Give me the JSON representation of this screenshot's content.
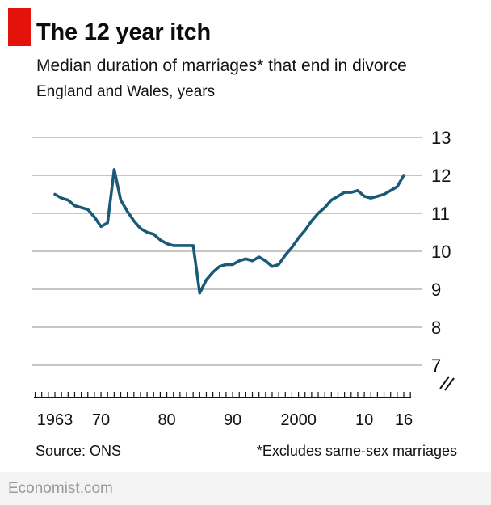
{
  "brand": {
    "accent_color": "#E3120B",
    "site_label": "Economist.com"
  },
  "header": {
    "title": "The 12 year itch",
    "subtitle": "Median duration of marriages* that end in divorce",
    "context": "England and Wales, years"
  },
  "chart_data": {
    "type": "line",
    "title": "The 12 year itch",
    "subtitle": "Median duration of marriages* that end in divorce",
    "region": "England and Wales",
    "unit": "years",
    "grid": "horizontal",
    "y_axis_side": "right",
    "axis_break": true,
    "ylim": [
      7,
      13
    ],
    "yticks": [
      7,
      8,
      9,
      10,
      11,
      12,
      13
    ],
    "xticks": [
      {
        "year": 1963,
        "label": "1963"
      },
      {
        "year": 1970,
        "label": "70"
      },
      {
        "year": 1980,
        "label": "80"
      },
      {
        "year": 1990,
        "label": "90"
      },
      {
        "year": 2000,
        "label": "2000"
      },
      {
        "year": 2010,
        "label": "10"
      },
      {
        "year": 2016,
        "label": "16"
      }
    ],
    "x": [
      1963,
      1964,
      1965,
      1966,
      1967,
      1968,
      1969,
      1970,
      1971,
      1972,
      1973,
      1974,
      1975,
      1976,
      1977,
      1978,
      1979,
      1980,
      1981,
      1982,
      1983,
      1984,
      1985,
      1986,
      1987,
      1988,
      1989,
      1990,
      1991,
      1992,
      1993,
      1994,
      1995,
      1996,
      1997,
      1998,
      1999,
      2000,
      2001,
      2002,
      2003,
      2004,
      2005,
      2006,
      2007,
      2008,
      2009,
      2010,
      2011,
      2012,
      2013,
      2014,
      2015,
      2016
    ],
    "series": [
      {
        "name": "Median duration of marriages that end in divorce",
        "color": "#1A5A78",
        "values": [
          11.5,
          11.4,
          11.35,
          11.2,
          11.15,
          11.1,
          10.9,
          10.65,
          10.75,
          12.15,
          11.35,
          11.05,
          10.8,
          10.6,
          10.5,
          10.45,
          10.3,
          10.2,
          10.15,
          10.15,
          10.15,
          10.15,
          8.9,
          9.25,
          9.45,
          9.6,
          9.65,
          9.65,
          9.75,
          9.8,
          9.75,
          9.85,
          9.75,
          9.6,
          9.65,
          9.9,
          10.1,
          10.35,
          10.55,
          10.8,
          11.0,
          11.15,
          11.35,
          11.45,
          11.55,
          11.55,
          11.6,
          11.45,
          11.4,
          11.45,
          11.5,
          11.6,
          11.7,
          12.0
        ]
      }
    ],
    "style": {
      "gridline_color": "#C6C6C6",
      "axis_color": "#121212"
    }
  },
  "footer": {
    "source": "Source: ONS",
    "footnote": "*Excludes same-sex marriages"
  }
}
